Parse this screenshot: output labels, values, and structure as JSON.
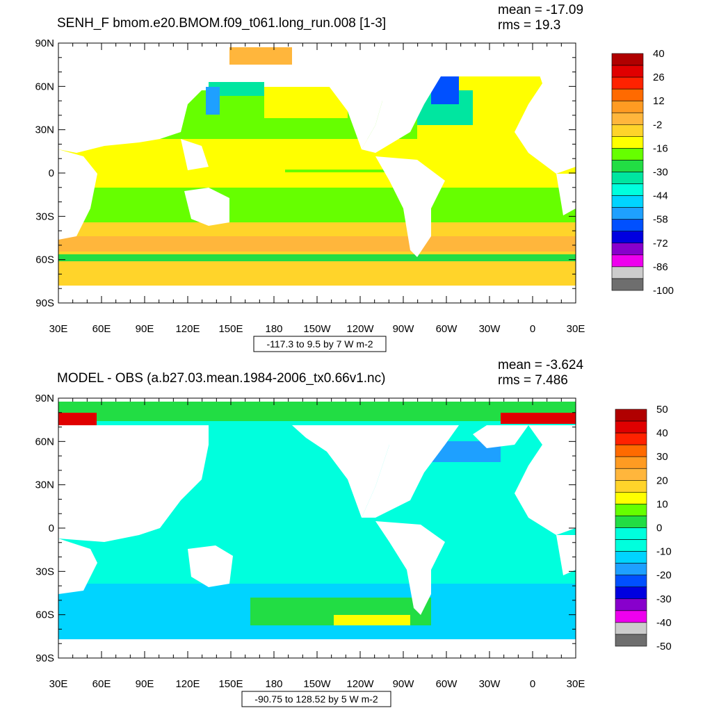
{
  "panels": [
    {
      "id": "top",
      "title": "SENH_F bmom.e20.BMOM.f09_t061.long_run.008 [1-3]",
      "mean": "mean = -17.09",
      "rms": "rms = 19.3",
      "contour_info": "-117.3 to 9.5 by 7 W m-2",
      "colorbar_labels": [
        "40",
        "26",
        "12",
        "-2",
        "-16",
        "-30",
        "-44",
        "-58",
        "-72",
        "-86",
        "-100"
      ],
      "colorbar_colors": [
        "#b00000",
        "#e00000",
        "#ff2200",
        "#ff6a00",
        "#ff9b22",
        "#ffb63c",
        "#ffd42a",
        "#ffff00",
        "#66ff00",
        "#22dd44",
        "#00e6a0",
        "#00ffdd",
        "#00d4ff",
        "#1ea0ff",
        "#0050ff",
        "#0000e0",
        "#8800cc",
        "#ee00ee",
        "#cccccc",
        "#6e6e6e"
      ]
    },
    {
      "id": "bottom",
      "title": "MODEL - OBS (a.b27.03.mean.1984-2006_tx0.66v1.nc)",
      "mean": "mean = -3.624",
      "rms": "rms = 7.486",
      "contour_info": "-90.75 to 128.52 by 5 W m-2",
      "colorbar_labels": [
        "50",
        "40",
        "30",
        "20",
        "10",
        "0",
        "-10",
        "-20",
        "-30",
        "-40",
        "-50"
      ],
      "colorbar_colors": [
        "#b00000",
        "#e00000",
        "#ff2200",
        "#ff6a00",
        "#ff9b22",
        "#ffb63c",
        "#ffd42a",
        "#ffff00",
        "#66ff00",
        "#22dd44",
        "#00ffdd",
        "#00ffdd",
        "#00d4ff",
        "#1ea0ff",
        "#0050ff",
        "#0000e0",
        "#8800cc",
        "#ee00ee",
        "#cccccc",
        "#6e6e6e"
      ]
    }
  ],
  "lat_labels": [
    "90N",
    "60N",
    "30N",
    "0",
    "30S",
    "60S",
    "90S"
  ],
  "lon_labels": [
    "30E",
    "60E",
    "90E",
    "120E",
    "150E",
    "180",
    "150W",
    "120W",
    "90W",
    "60W",
    "30W",
    "0",
    "30E"
  ]
}
